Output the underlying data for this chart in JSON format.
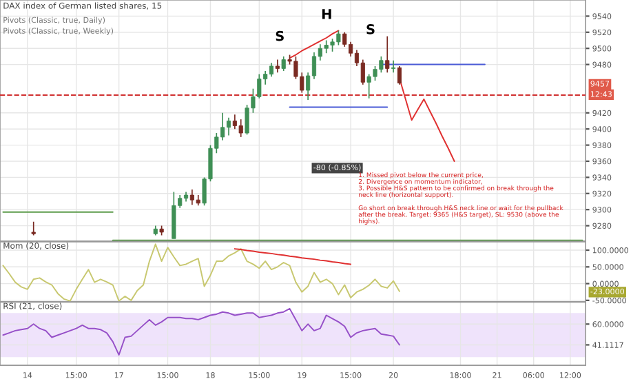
{
  "chart_data": [
    {
      "type": "candlestick",
      "title": "DAX index of German listed shares, 15",
      "ohlc": [
        null,
        null,
        null,
        null,
        null,
        [
          9272,
          9285,
          9268,
          9270
        ],
        null,
        null,
        null,
        null,
        null,
        null,
        null,
        null,
        null,
        null,
        null,
        null,
        null,
        null,
        null,
        null,
        null,
        null,
        null,
        [
          9270,
          9280,
          9268,
          9276
        ],
        [
          9276,
          9280,
          9268,
          9272
        ],
        null,
        [
          9264,
          9322,
          9264,
          9305
        ],
        [
          9305,
          9318,
          9302,
          9314
        ],
        [
          9314,
          9322,
          9310,
          9318
        ],
        [
          9318,
          9325,
          9306,
          9312
        ],
        [
          9312,
          9318,
          9305,
          9308
        ],
        [
          9308,
          9340,
          9305,
          9338
        ],
        [
          9338,
          9380,
          9335,
          9376
        ],
        [
          9376,
          9395,
          9370,
          9390
        ],
        [
          9390,
          9420,
          9386,
          9402
        ],
        [
          9402,
          9414,
          9392,
          9410
        ],
        [
          9410,
          9418,
          9400,
          9404
        ],
        [
          9404,
          9412,
          9390,
          9395
        ],
        [
          9395,
          9430,
          9393,
          9426
        ],
        [
          9426,
          9450,
          9420,
          9440
        ],
        [
          9440,
          9468,
          9438,
          9462
        ],
        [
          9462,
          9472,
          9455,
          9468
        ],
        [
          9468,
          9482,
          9465,
          9478
        ],
        [
          9478,
          9486,
          9470,
          9475
        ],
        [
          9475,
          9490,
          9472,
          9486
        ],
        [
          9486,
          9492,
          9480,
          9484
        ],
        [
          9484,
          9490,
          9462,
          9465
        ],
        [
          9465,
          9470,
          9445,
          9448
        ],
        [
          9448,
          9470,
          9436,
          9466
        ],
        [
          9466,
          9495,
          9462,
          9490
        ],
        [
          9490,
          9505,
          9485,
          9500
        ],
        [
          9500,
          9510,
          9494,
          9504
        ],
        [
          9504,
          9512,
          9496,
          9508
        ],
        [
          9508,
          9522,
          9504,
          9518
        ],
        [
          9518,
          9520,
          9502,
          9505
        ],
        [
          9505,
          9508,
          9490,
          9494
        ],
        [
          9494,
          9498,
          9478,
          9482
        ],
        [
          9482,
          9486,
          9455,
          9458
        ],
        [
          9458,
          9468,
          9438,
          9465
        ],
        [
          9465,
          9478,
          9460,
          9474
        ],
        [
          9474,
          9490,
          9470,
          9485
        ],
        [
          9485,
          9515,
          9470,
          9475
        ],
        [
          9475,
          9485,
          9470,
          9476
        ],
        [
          9476,
          9478,
          9455,
          9457
        ],
        null,
        null,
        null,
        null,
        null,
        null,
        null,
        null,
        null,
        null,
        null,
        null,
        null,
        null,
        null,
        null,
        null,
        null,
        null,
        null,
        null,
        null,
        null,
        null,
        null,
        null,
        null,
        null,
        null,
        null
      ],
      "series": [
        {
          "type": "line",
          "color": "#5b9a4a",
          "values": [
            9297,
            9297,
            9297,
            9297,
            9297,
            9297,
            9297,
            9297,
            9297,
            9297,
            9297,
            9297,
            9297,
            9297,
            9297,
            9297,
            9297,
            9297,
            9297,
            null,
            null,
            null,
            null,
            null,
            null,
            null,
            null,
            null,
            null,
            null,
            null,
            null,
            null,
            null,
            null,
            null,
            null,
            null,
            null,
            null,
            null,
            null,
            null,
            null,
            null,
            null,
            null,
            null,
            null,
            null,
            null,
            null,
            null,
            null,
            null,
            null,
            null,
            null,
            null,
            null,
            null,
            null,
            null,
            null,
            null,
            null,
            null,
            null,
            null,
            null,
            null,
            null,
            null,
            null,
            null,
            null,
            null,
            null,
            null,
            null,
            null,
            null,
            null,
            null,
            null,
            null,
            null,
            null,
            null,
            null,
            null,
            null,
            null,
            null,
            null,
            null
          ]
        },
        {
          "type": "line",
          "color": "#5b9a4a",
          "values": [
            null,
            null,
            null,
            null,
            null,
            null,
            null,
            null,
            null,
            null,
            null,
            null,
            null,
            null,
            null,
            null,
            null,
            null,
            9262,
            9262,
            9262,
            9262,
            9262,
            9262,
            9262,
            9262,
            9262,
            9262,
            9262,
            9262,
            9262,
            9262,
            9262,
            9262,
            9262,
            9262,
            9262,
            9262,
            9262,
            9262,
            9262,
            9262,
            9262,
            9262,
            9262,
            9262,
            9262,
            9262,
            9262,
            9262,
            9262,
            9262,
            9262,
            9262,
            9262,
            9262,
            9262,
            9262,
            9262,
            9262,
            9262,
            9262,
            9262,
            9262,
            9262,
            9262,
            9262,
            9262,
            9262,
            9262,
            9262,
            9262,
            9262,
            9262,
            9262,
            9262,
            9262,
            9262,
            9262,
            9262,
            9262,
            9262,
            9262,
            9262,
            9262,
            9262,
            9262,
            9262,
            9262,
            9262,
            9262,
            9262,
            9262,
            9262,
            9262,
            9262
          ]
        },
        {
          "type": "line",
          "color": "#4a5bd6",
          "values": [
            null,
            null,
            null,
            null,
            null,
            null,
            null,
            null,
            null,
            null,
            null,
            null,
            null,
            null,
            null,
            null,
            null,
            null,
            null,
            null,
            null,
            null,
            null,
            null,
            null,
            null,
            null,
            null,
            null,
            null,
            null,
            null,
            null,
            null,
            null,
            null,
            null,
            null,
            null,
            null,
            null,
            null,
            null,
            null,
            null,
            null,
            null,
            9427,
            9427,
            9427,
            9427,
            9427,
            9427,
            9427,
            9427,
            9427,
            9427,
            9427,
            9427,
            9427,
            9427,
            9427,
            9427,
            9427,
            null,
            null,
            null,
            null,
            null,
            null,
            null,
            null,
            null,
            null,
            null,
            null,
            null,
            null,
            null,
            null,
            null,
            null,
            null,
            null,
            null,
            null,
            null,
            null,
            null,
            null,
            null,
            null,
            null,
            null,
            null,
            null
          ]
        },
        {
          "type": "line",
          "color": "#4a5bd6",
          "values": [
            null,
            null,
            null,
            null,
            null,
            null,
            null,
            null,
            null,
            null,
            null,
            null,
            null,
            null,
            null,
            null,
            null,
            null,
            null,
            null,
            null,
            null,
            null,
            null,
            null,
            null,
            null,
            null,
            null,
            null,
            null,
            null,
            null,
            null,
            null,
            null,
            null,
            null,
            null,
            null,
            null,
            null,
            null,
            null,
            null,
            null,
            null,
            null,
            null,
            null,
            null,
            null,
            null,
            null,
            null,
            null,
            null,
            null,
            null,
            null,
            null,
            null,
            9480,
            9480,
            9480,
            9480,
            9480,
            9480,
            9480,
            9480,
            9480,
            9480,
            9480,
            9480,
            9480,
            9480,
            9480,
            9480,
            9480,
            9480,
            null,
            null,
            null,
            null,
            null,
            null,
            null,
            null,
            null,
            null,
            null,
            null,
            null,
            null,
            null,
            null
          ]
        },
        {
          "type": "line",
          "color": "#e03030",
          "values": [
            null,
            null,
            null,
            null,
            null,
            null,
            null,
            null,
            null,
            null,
            null,
            null,
            null,
            null,
            null,
            null,
            null,
            null,
            null,
            null,
            null,
            null,
            null,
            null,
            null,
            null,
            null,
            null,
            null,
            null,
            null,
            null,
            null,
            null,
            null,
            null,
            null,
            null,
            null,
            null,
            null,
            null,
            null,
            null,
            null,
            null,
            null,
            9488,
            9492,
            9497,
            9501,
            9505,
            9509,
            9513,
            9518,
            9522,
            null,
            null,
            null,
            null,
            null,
            null,
            null,
            null,
            null,
            null,
            null,
            null,
            null,
            null,
            null,
            null,
            null,
            null,
            null,
            null,
            null,
            null,
            null,
            null,
            null,
            null,
            null,
            null,
            null,
            null,
            null,
            null,
            null,
            null,
            null,
            null,
            null,
            null,
            null,
            null
          ]
        },
        {
          "type": "line",
          "color": "#e03030",
          "values": [
            null,
            null,
            null,
            null,
            null,
            null,
            null,
            null,
            null,
            null,
            null,
            null,
            null,
            null,
            null,
            null,
            null,
            null,
            null,
            null,
            null,
            null,
            null,
            null,
            null,
            null,
            null,
            null,
            null,
            null,
            null,
            null,
            null,
            null,
            null,
            null,
            null,
            null,
            null,
            null,
            null,
            null,
            null,
            null,
            null,
            null,
            null,
            null,
            null,
            null,
            null,
            null,
            null,
            null,
            null,
            null,
            null,
            null,
            null,
            null,
            null,
            null,
            null,
            null,
            null,
            9463,
            9437,
            9411,
            9424,
            9437,
            9422,
            9407,
            9391,
            9376,
            9360,
            null,
            null,
            null,
            null,
            null,
            null,
            null,
            null,
            null,
            null,
            null,
            null,
            null,
            null,
            null,
            null,
            null,
            null,
            null,
            null,
            null
          ]
        }
      ],
      "ref_lines": [
        {
          "axis": "y",
          "value": 9442,
          "color": "#d03030",
          "line_style": "dashed"
        }
      ],
      "annotations": [
        "S",
        "H",
        "S",
        "-80 (-0.85%)",
        "Pivots (Classic, true, Daily)",
        "Pivots (Classic, true, Weekly)",
        "1. Missed pivot below the current price,\n2. Divergence on momentum indicator,\n3. Possible H&S pattern to be confirmed on break through the\nneck line (horizontal support).\n\nGo short on break through H&S neck line or wait for the pullback\nafter the break. Target: 9365 (H&S target), SL: 9530 (above the\nhighs).",
        "9457",
        "12:43"
      ],
      "ylim": [
        9261,
        9560
      ],
      "yticks": [
        9280,
        9300,
        9320,
        9340,
        9360,
        9380,
        9400,
        9420,
        9480,
        9500,
        9520,
        9540
      ],
      "tick_labels": "y",
      "grid": true
    },
    {
      "type": "line",
      "title": "Mom (20, close)",
      "series": [
        {
          "color": "#c8c870",
          "values": [
            54,
            30,
            4,
            -10,
            -17,
            13,
            17,
            5,
            -4,
            -30,
            -46,
            -52,
            -17,
            13,
            42,
            4,
            13,
            5,
            -4,
            -52,
            -38,
            -50,
            -21,
            -4,
            67,
            118,
            67,
            108,
            80,
            54,
            58,
            67,
            75,
            -8,
            25,
            67,
            67,
            83,
            92,
            104,
            67,
            58,
            46,
            67,
            42,
            50,
            63,
            54,
            4,
            -25,
            -8,
            33,
            4,
            13,
            0,
            -33,
            -4,
            -42,
            -25,
            -17,
            -5,
            13,
            -8,
            -13,
            8,
            -23,
            null,
            null,
            null,
            null,
            null,
            null,
            null,
            null,
            null,
            null,
            null,
            null,
            null,
            null,
            null,
            null,
            null,
            null,
            null,
            null,
            null,
            null,
            null,
            null,
            null,
            null,
            null,
            null,
            null,
            null
          ]
        },
        {
          "color": "#e03030",
          "values": [
            null,
            null,
            null,
            null,
            null,
            null,
            null,
            null,
            null,
            null,
            null,
            null,
            null,
            null,
            null,
            null,
            null,
            null,
            null,
            null,
            null,
            null,
            null,
            null,
            null,
            null,
            null,
            null,
            null,
            null,
            null,
            null,
            null,
            null,
            null,
            null,
            null,
            null,
            104,
            102,
            99,
            97,
            94,
            92,
            90,
            87,
            85,
            82,
            80,
            77,
            75,
            73,
            70,
            68,
            65,
            63,
            60,
            58,
            null,
            null,
            null,
            null,
            null,
            null,
            null,
            null,
            null,
            null,
            null,
            null,
            null,
            null,
            null,
            null,
            null,
            null,
            null,
            null,
            null,
            null,
            null,
            null,
            null,
            null,
            null,
            null,
            null,
            null,
            null,
            null,
            null,
            null,
            null,
            null,
            null,
            null
          ]
        }
      ],
      "annotations": [
        "-23.0000"
      ],
      "ylim": [
        -54,
        125
      ],
      "yticks": [
        {
          "value": 100,
          "label": "100.0000"
        },
        {
          "value": 50,
          "label": "50.0000"
        },
        {
          "value": 0,
          "label": "0.0000"
        },
        {
          "value": -50,
          "label": "-50.0000"
        }
      ],
      "tick_labels": "y",
      "grid": true
    },
    {
      "type": "line",
      "title": "RSI (21, close)",
      "categories": [
        null,
        null,
        null,
        null,
        "14",
        null,
        null,
        null,
        null,
        null,
        null,
        null,
        "15:00",
        null,
        null,
        null,
        null,
        null,
        null,
        "17",
        null,
        null,
        null,
        null,
        null,
        null,
        null,
        "15:00",
        null,
        null,
        null,
        null,
        null,
        null,
        "18",
        null,
        null,
        null,
        null,
        null,
        null,
        null,
        "15:00",
        null,
        null,
        null,
        null,
        null,
        null,
        "19",
        null,
        null,
        null,
        null,
        null,
        null,
        null,
        "15:00",
        null,
        null,
        null,
        null,
        null,
        null,
        "20",
        null,
        null,
        null,
        null,
        null,
        null,
        null,
        null,
        null,
        null,
        "18:00",
        null,
        null,
        null,
        null,
        null,
        "21",
        null,
        null,
        null,
        null,
        null,
        "06:00",
        null,
        null,
        null,
        null,
        null,
        "12:00",
        null,
        null
      ],
      "series": [
        {
          "color": "#9650c8",
          "values": [
            50,
            52,
            54,
            55,
            56,
            60,
            56,
            54,
            48,
            50,
            52,
            54,
            56,
            59,
            56,
            56,
            55,
            52,
            44,
            32,
            48,
            49,
            54,
            59,
            64,
            59,
            62,
            66,
            66,
            66,
            65,
            65,
            64,
            66,
            68,
            69,
            71,
            70,
            68,
            69,
            70,
            70,
            66,
            67,
            68,
            70,
            71,
            74,
            64,
            54,
            60,
            54,
            56,
            68,
            65,
            62,
            58,
            48,
            52,
            54,
            55,
            56,
            51,
            50,
            49,
            41.1117,
            null,
            null,
            null,
            null,
            null,
            null,
            null,
            null,
            null,
            null,
            null,
            null,
            null,
            null,
            null,
            null,
            null,
            null,
            null,
            null,
            null,
            null,
            null,
            null,
            null,
            null,
            null,
            null,
            null,
            null
          ]
        }
      ],
      "bands": [
        {
          "axis": "y",
          "from": 30,
          "to": 70,
          "color": "#efe3fb"
        }
      ],
      "ylim": [
        22.5,
        80
      ],
      "yticks": [
        {
          "value": 60,
          "label": "60.0000"
        },
        {
          "value": 41.1117,
          "label": "41.1117"
        }
      ],
      "grid": true
    }
  ]
}
